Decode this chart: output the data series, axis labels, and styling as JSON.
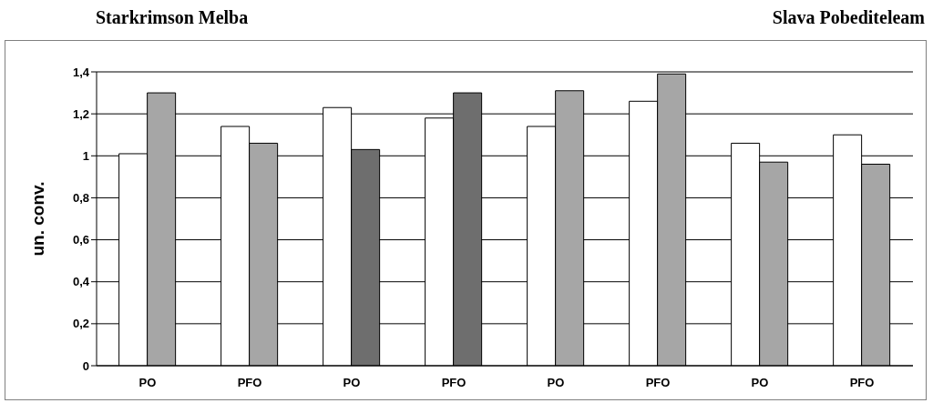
{
  "chart_data": {
    "type": "bar",
    "ylabel": "un. conv.",
    "annotations": [
      "Starkrimson Melba",
      "Slava Pobediteleam"
    ],
    "categories": [
      "PO",
      "PFO",
      "PO",
      "PFO",
      "PO",
      "PFO",
      "PO",
      "PFO"
    ],
    "series": [
      {
        "color": "#ffffff",
        "values": [
          1.01,
          1.14,
          1.23,
          1.18,
          1.14,
          1.26,
          1.06,
          1.1
        ]
      },
      {
        "color": "#a6a6a6",
        "colors": [
          "#a6a6a6",
          "#a6a6a6",
          "#6e6e6e",
          "#6e6e6e",
          "#a6a6a6",
          "#a6a6a6",
          "#a6a6a6",
          "#a6a6a6"
        ],
        "values": [
          1.3,
          1.06,
          1.03,
          1.3,
          1.31,
          1.39,
          0.97,
          0.96
        ]
      }
    ],
    "ylim": [
      0,
      1.4
    ],
    "yticks": [
      0,
      {
        "value": 0.2,
        "label": "0,2"
      },
      {
        "value": 0.4,
        "label": "0,4"
      },
      {
        "value": 0.6,
        "label": "0,6"
      },
      {
        "value": 0.8,
        "label": "0,8"
      },
      1,
      {
        "value": 1.2,
        "label": "1,2"
      },
      {
        "value": 1.4,
        "label": "1,4"
      }
    ],
    "grid": "y"
  }
}
